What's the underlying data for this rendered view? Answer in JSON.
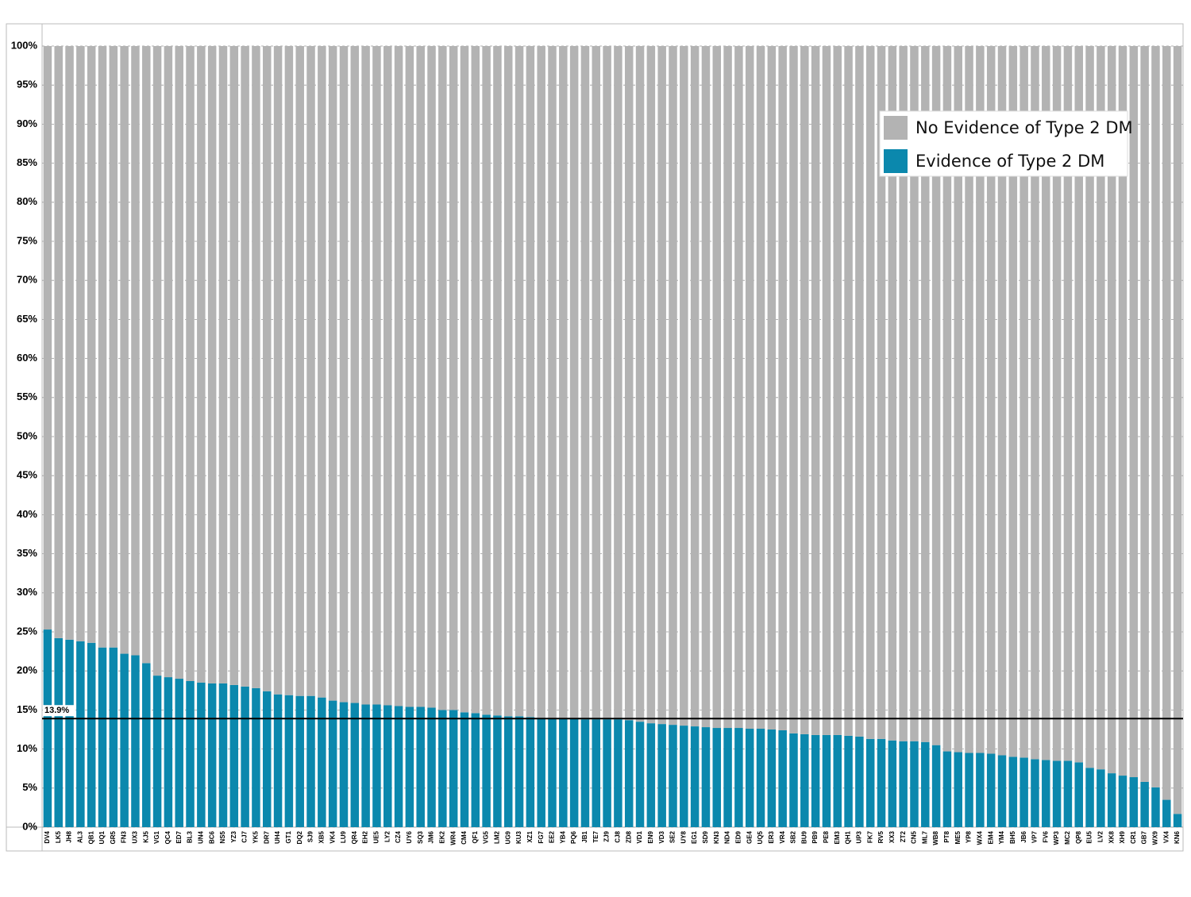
{
  "chart_data": {
    "type": "stacked_bar",
    "categories": [
      "DV4",
      "LK5",
      "JH8",
      "AL3",
      "QB1",
      "UQ1",
      "GR5",
      "FN3",
      "UX3",
      "KJ5",
      "VG1",
      "QC4",
      "ED7",
      "BL3",
      "UN4",
      "BC6",
      "NS5",
      "YZ3",
      "CJ7",
      "YK5",
      "DR7",
      "UH4",
      "GT1",
      "DQ2",
      "SJ9",
      "XB5",
      "VK4",
      "LU9",
      "QR4",
      "EH2",
      "UE5",
      "LY2",
      "CZ4",
      "UY6",
      "SQ3",
      "JM6",
      "EK2",
      "WR4",
      "CM4",
      "QF1",
      "VG5",
      "LM2",
      "UG9",
      "KU3",
      "XZ1",
      "FG7",
      "EE2",
      "YB4",
      "PQ6",
      "JB1",
      "TE7",
      "ZJ9",
      "CJ8",
      "ZD8",
      "VD1",
      "EN9",
      "VD3",
      "SE2",
      "UY8",
      "EG1",
      "SD9",
      "KN3",
      "ND4",
      "ED9",
      "GE4",
      "UQ5",
      "ER3",
      "VR4",
      "SB2",
      "BU9",
      "PB9",
      "PE8",
      "EM3",
      "QH1",
      "UP3",
      "FK7",
      "RV5",
      "XX3",
      "ZT2",
      "CN5",
      "ML7",
      "WB8",
      "PT8",
      "ME5",
      "YP8",
      "WX4",
      "EM4",
      "YM4",
      "BH5",
      "JB6",
      "VP7",
      "FV6",
      "WP3",
      "MC2",
      "QP8",
      "EU5",
      "LV2",
      "XK8",
      "XH9",
      "CR1",
      "GB7",
      "WX9",
      "VX4",
      "KN6"
    ],
    "series": [
      {
        "name": "Evidence of Type 2 DM",
        "color": "#0b88ad",
        "values": [
          25.3,
          24.2,
          24.0,
          23.8,
          23.6,
          23.0,
          23.0,
          22.2,
          22.0,
          21.0,
          19.4,
          19.2,
          19.0,
          18.7,
          18.5,
          18.4,
          18.4,
          18.2,
          18.0,
          17.8,
          17.4,
          17.0,
          16.9,
          16.8,
          16.8,
          16.6,
          16.2,
          16.0,
          15.9,
          15.7,
          15.7,
          15.6,
          15.5,
          15.4,
          15.4,
          15.3,
          15.0,
          15.0,
          14.7,
          14.6,
          14.4,
          14.3,
          14.2,
          14.2,
          14.1,
          14.0,
          13.9,
          13.9,
          13.9,
          13.8,
          13.8,
          13.8,
          13.8,
          13.7,
          13.5,
          13.3,
          13.2,
          13.1,
          13.0,
          12.9,
          12.8,
          12.7,
          12.7,
          12.7,
          12.6,
          12.6,
          12.5,
          12.4,
          12.0,
          11.9,
          11.8,
          11.8,
          11.8,
          11.7,
          11.6,
          11.3,
          11.3,
          11.1,
          11.0,
          11.0,
          10.9,
          10.5,
          9.7,
          9.6,
          9.5,
          9.5,
          9.4,
          9.2,
          9.0,
          8.9,
          8.7,
          8.6,
          8.5,
          8.5,
          8.3,
          7.6,
          7.4,
          6.9,
          6.6,
          6.4,
          5.8,
          5.1,
          3.5,
          1.7
        ]
      },
      {
        "name": "No Evidence of Type 2 DM",
        "color": "#b3b3b3",
        "values": [
          74.7,
          75.8,
          76.0,
          76.2,
          76.4,
          77.0,
          77.0,
          77.8,
          78.0,
          79.0,
          80.6,
          80.8,
          81.0,
          81.3,
          81.5,
          81.6,
          81.6,
          81.8,
          82.0,
          82.2,
          82.6,
          83.0,
          83.1,
          83.2,
          83.2,
          83.4,
          83.8,
          84.0,
          84.1,
          84.3,
          84.3,
          84.4,
          84.5,
          84.6,
          84.6,
          84.7,
          85.0,
          85.0,
          85.3,
          85.4,
          85.6,
          85.7,
          85.8,
          85.8,
          85.9,
          86.0,
          86.1,
          86.1,
          86.1,
          86.2,
          86.2,
          86.2,
          86.2,
          86.3,
          86.5,
          86.7,
          86.8,
          86.9,
          87.0,
          87.1,
          87.2,
          87.3,
          87.3,
          87.3,
          87.4,
          87.4,
          87.5,
          87.6,
          88.0,
          88.1,
          88.2,
          88.2,
          88.2,
          88.3,
          88.4,
          88.7,
          88.7,
          88.9,
          89.0,
          89.0,
          89.1,
          89.5,
          90.3,
          90.4,
          90.5,
          90.5,
          90.6,
          90.8,
          91.0,
          91.1,
          91.3,
          91.4,
          91.5,
          91.5,
          91.7,
          92.4,
          92.6,
          93.1,
          93.4,
          93.6,
          94.2,
          94.9,
          96.5,
          98.3
        ]
      }
    ],
    "ylim": [
      0,
      100
    ],
    "yticks": [
      {
        "value": 0,
        "label": "0%"
      },
      {
        "value": 5,
        "label": "5%"
      },
      {
        "value": 10,
        "label": "10%"
      },
      {
        "value": 15,
        "label": "15%"
      },
      {
        "value": 20,
        "label": "20%"
      },
      {
        "value": 25,
        "label": "25%"
      },
      {
        "value": 30,
        "label": "30%"
      },
      {
        "value": 35,
        "label": "35%"
      },
      {
        "value": 40,
        "label": "40%"
      },
      {
        "value": 45,
        "label": "45%"
      },
      {
        "value": 50,
        "label": "50%"
      },
      {
        "value": 55,
        "label": "55%"
      },
      {
        "value": 60,
        "label": "60%"
      },
      {
        "value": 65,
        "label": "65%"
      },
      {
        "value": 70,
        "label": "70%"
      },
      {
        "value": 75,
        "label": "75%"
      },
      {
        "value": 80,
        "label": "80%"
      },
      {
        "value": 85,
        "label": "85%"
      },
      {
        "value": 90,
        "label": "90%"
      },
      {
        "value": 95,
        "label": "95%"
      },
      {
        "value": 100,
        "label": "100%"
      }
    ],
    "grid": true,
    "reference_line": {
      "value": 13.9,
      "label": "13.9%"
    },
    "legend": "top-right"
  }
}
